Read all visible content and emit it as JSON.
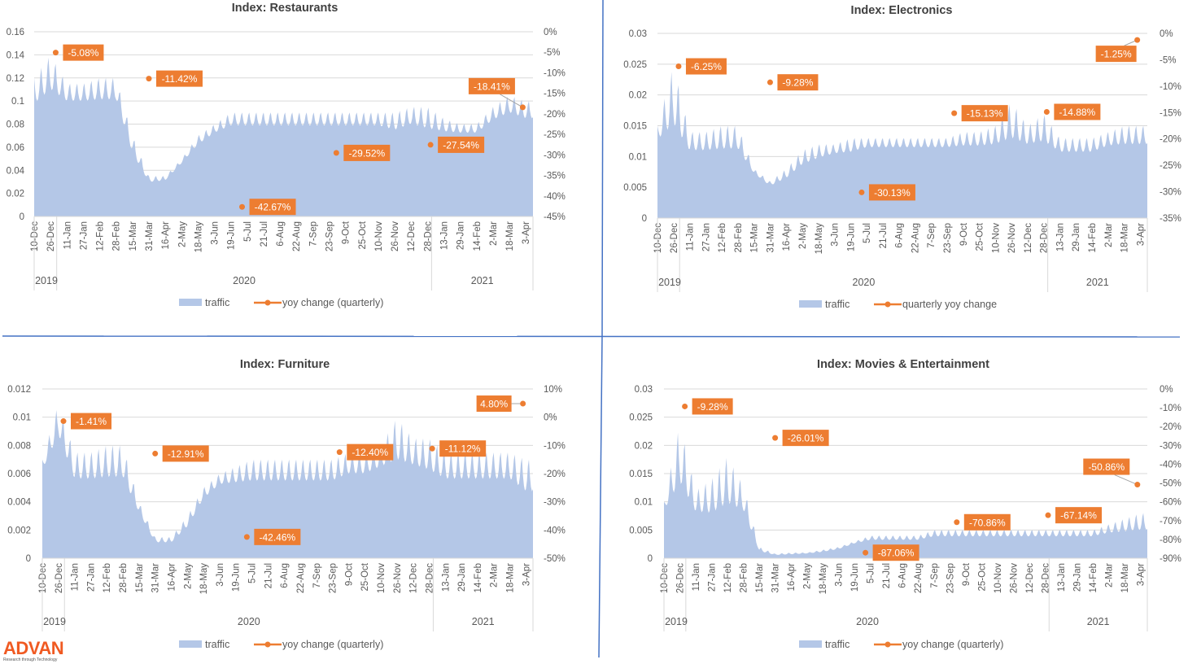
{
  "logo": {
    "brand": "ADVAN",
    "tagline": "Research through Technology"
  },
  "colors": {
    "traffic": "#B4C7E7",
    "yoy": "#ED7D31",
    "divider": "#4472C4",
    "grid": "#D9D9D9"
  },
  "chart_data": [
    {
      "type": "area+scatter",
      "title": "Index: Restaurants",
      "x_tick_labels": [
        "10-Dec",
        "26-Dec",
        "11-Jan",
        "27-Jan",
        "12-Feb",
        "28-Feb",
        "15-Mar",
        "31-Mar",
        "16-Apr",
        "2-May",
        "18-May",
        "3-Jun",
        "19-Jun",
        "5-Jul",
        "21-Jul",
        "6-Aug",
        "22-Aug",
        "7-Sep",
        "23-Sep",
        "9-Oct",
        "25-Oct",
        "10-Nov",
        "26-Nov",
        "12-Dec",
        "28-Dec",
        "13-Jan",
        "29-Jan",
        "14-Feb",
        "2-Mar",
        "18-Mar",
        "3-Apr"
      ],
      "x_tick_start": "2019-12-10",
      "x_range": [
        "2019-12-10",
        "2021-04-10"
      ],
      "years": [
        "2019",
        "2020",
        "2021"
      ],
      "left_axis": {
        "ticks": [
          "0",
          "0.02",
          "0.04",
          "0.06",
          "0.08",
          "0.1",
          "0.12",
          "0.14",
          "0.16"
        ],
        "range": [
          0,
          0.16
        ]
      },
      "right_axis": {
        "ticks": [
          "0%",
          "-5%",
          "-10%",
          "-15%",
          "-20%",
          "-25%",
          "-30%",
          "-35%",
          "-40%",
          "-45%"
        ],
        "range": [
          -45,
          0
        ]
      },
      "legend": {
        "traffic": "traffic",
        "yoy": "yoy change (quarterly)",
        "placement": "bottom"
      },
      "grid": true,
      "traffic_weekly_peak": [
        0.12,
        0.14,
        0.115,
        0.115,
        0.12,
        0.12,
        0.07,
        0.035,
        0.035,
        0.05,
        0.07,
        0.08,
        0.09,
        0.09,
        0.09,
        0.09,
        0.09,
        0.09,
        0.09,
        0.09,
        0.09,
        0.09,
        0.09,
        0.095,
        0.095,
        0.085,
        0.08,
        0.08,
        0.095,
        0.105,
        0.1
      ],
      "traffic_weekly_trough": [
        0.09,
        0.1,
        0.095,
        0.095,
        0.095,
        0.095,
        0.05,
        0.028,
        0.03,
        0.045,
        0.06,
        0.07,
        0.075,
        0.075,
        0.075,
        0.075,
        0.075,
        0.075,
        0.075,
        0.075,
        0.075,
        0.075,
        0.07,
        0.075,
        0.07,
        0.07,
        0.07,
        0.07,
        0.08,
        0.085,
        0.08
      ],
      "yoy": [
        {
          "date": "2019-12-31",
          "value": -5.08,
          "label": "-5.08%"
        },
        {
          "date": "2020-03-31",
          "value": -11.42,
          "label": "-11.42%"
        },
        {
          "date": "2020-06-30",
          "value": -42.67,
          "label": "-42.67%"
        },
        {
          "date": "2020-09-30",
          "value": -29.52,
          "label": "-29.52%"
        },
        {
          "date": "2020-12-31",
          "value": -27.54,
          "label": "-27.54%"
        },
        {
          "date": "2021-03-31",
          "value": -18.41,
          "label": "-18.41%"
        }
      ]
    },
    {
      "type": "area+scatter",
      "title": "Index: Electronics",
      "x_tick_labels": [
        "10-Dec",
        "26-Dec",
        "11-Jan",
        "27-Jan",
        "12-Feb",
        "28-Feb",
        "15-Mar",
        "31-Mar",
        "16-Apr",
        "2-May",
        "18-May",
        "3-Jun",
        "19-Jun",
        "5-Jul",
        "21-Jul",
        "6-Aug",
        "22-Aug",
        "7-Sep",
        "23-Sep",
        "9-Oct",
        "25-Oct",
        "10-Nov",
        "26-Nov",
        "12-Dec",
        "28-Dec",
        "13-Jan",
        "29-Jan",
        "14-Feb",
        "2-Mar",
        "18-Mar",
        "3-Apr"
      ],
      "x_tick_start": "2019-12-10",
      "x_range": [
        "2019-12-10",
        "2021-04-10"
      ],
      "years": [
        "2019",
        "2020",
        "2021"
      ],
      "left_axis": {
        "ticks": [
          "0",
          "0.005",
          "0.01",
          "0.015",
          "0.02",
          "0.025",
          "0.03"
        ],
        "range": [
          0,
          0.03
        ]
      },
      "right_axis": {
        "ticks": [
          "0%",
          "-5%",
          "-10%",
          "-15%",
          "-20%",
          "-25%",
          "-30%",
          "-35%"
        ],
        "range": [
          -35,
          0
        ]
      },
      "legend": {
        "traffic": "traffic",
        "yoy": "quarterly yoy change",
        "placement": "bottom"
      },
      "grid": true,
      "traffic_weekly_peak": [
        0.015,
        0.025,
        0.014,
        0.014,
        0.015,
        0.015,
        0.008,
        0.006,
        0.008,
        0.011,
        0.012,
        0.012,
        0.013,
        0.013,
        0.013,
        0.013,
        0.013,
        0.013,
        0.013,
        0.014,
        0.014,
        0.015,
        0.019,
        0.015,
        0.017,
        0.013,
        0.013,
        0.013,
        0.014,
        0.015,
        0.015
      ],
      "traffic_weekly_trough": [
        0.012,
        0.012,
        0.01,
        0.01,
        0.01,
        0.01,
        0.007,
        0.005,
        0.006,
        0.008,
        0.009,
        0.01,
        0.01,
        0.011,
        0.011,
        0.011,
        0.011,
        0.011,
        0.011,
        0.011,
        0.011,
        0.011,
        0.011,
        0.011,
        0.011,
        0.01,
        0.01,
        0.01,
        0.011,
        0.011,
        0.011
      ],
      "yoy": [
        {
          "date": "2019-12-31",
          "value": -6.25,
          "label": "-6.25%"
        },
        {
          "date": "2020-03-31",
          "value": -9.28,
          "label": "-9.28%"
        },
        {
          "date": "2020-06-30",
          "value": -30.13,
          "label": "-30.13%"
        },
        {
          "date": "2020-09-30",
          "value": -15.13,
          "label": "-15.13%"
        },
        {
          "date": "2020-12-31",
          "value": -14.88,
          "label": "-14.88%"
        },
        {
          "date": "2021-03-31",
          "value": -1.25,
          "label": "-1.25%"
        }
      ]
    },
    {
      "type": "area+scatter",
      "title": "Index: Furniture",
      "x_tick_labels": [
        "10-Dec",
        "26-Dec",
        "11-Jan",
        "27-Jan",
        "12-Feb",
        "28-Feb",
        "15-Mar",
        "31-Mar",
        "16-Apr",
        "2-May",
        "18-May",
        "3-Jun",
        "19-Jun",
        "5-Jul",
        "21-Jul",
        "6-Aug",
        "22-Aug",
        "7-Sep",
        "23-Sep",
        "9-Oct",
        "25-Oct",
        "10-Nov",
        "26-Nov",
        "12-Dec",
        "28-Dec",
        "13-Jan",
        "29-Jan",
        "14-Feb",
        "2-Mar",
        "18-Mar",
        "3-Apr"
      ],
      "x_tick_start": "2019-12-10",
      "x_range": [
        "2019-12-10",
        "2021-04-10"
      ],
      "years": [
        "2019",
        "2020",
        "2021"
      ],
      "left_axis": {
        "ticks": [
          "0",
          "0.002",
          "0.004",
          "0.006",
          "0.008",
          "0.01",
          "0.012"
        ],
        "range": [
          0,
          0.012
        ]
      },
      "right_axis": {
        "ticks": [
          "10%",
          "0%",
          "-10%",
          "-20%",
          "-30%",
          "-40%",
          "-50%"
        ],
        "range": [
          -50,
          10
        ]
      },
      "legend": {
        "traffic": "traffic",
        "yoy": "yoy change (quarterly)",
        "placement": "bottom"
      },
      "grid": true,
      "traffic_weekly_peak": [
        0.007,
        0.011,
        0.0075,
        0.0075,
        0.008,
        0.008,
        0.004,
        0.0015,
        0.0015,
        0.003,
        0.005,
        0.006,
        0.0065,
        0.007,
        0.007,
        0.007,
        0.007,
        0.007,
        0.007,
        0.0075,
        0.0075,
        0.008,
        0.01,
        0.0085,
        0.0085,
        0.0075,
        0.0075,
        0.0075,
        0.0075,
        0.0075,
        0.007
      ],
      "traffic_weekly_trough": [
        0.006,
        0.008,
        0.005,
        0.005,
        0.005,
        0.005,
        0.003,
        0.001,
        0.001,
        0.002,
        0.004,
        0.005,
        0.005,
        0.005,
        0.005,
        0.005,
        0.005,
        0.005,
        0.005,
        0.0055,
        0.0055,
        0.006,
        0.006,
        0.006,
        0.0055,
        0.005,
        0.005,
        0.005,
        0.005,
        0.005,
        0.004
      ],
      "yoy": [
        {
          "date": "2019-12-31",
          "value": -1.41,
          "label": "-1.41%"
        },
        {
          "date": "2020-03-31",
          "value": -12.91,
          "label": "-12.91%"
        },
        {
          "date": "2020-06-30",
          "value": -42.46,
          "label": "-42.46%"
        },
        {
          "date": "2020-09-30",
          "value": -12.4,
          "label": "-12.40%"
        },
        {
          "date": "2020-12-31",
          "value": -11.12,
          "label": "-11.12%"
        },
        {
          "date": "2021-03-31",
          "value": 4.8,
          "label": "4.80%"
        }
      ]
    },
    {
      "type": "area+scatter",
      "title": "Index: Movies & Entertainment",
      "x_tick_labels": [
        "10-Dec",
        "26-Dec",
        "11-Jan",
        "27-Jan",
        "12-Feb",
        "28-Feb",
        "15-Mar",
        "31-Mar",
        "16-Apr",
        "2-May",
        "18-May",
        "3-Jun",
        "19-Jun",
        "5-Jul",
        "21-Jul",
        "6-Aug",
        "22-Aug",
        "7-Sep",
        "23-Sep",
        "9-Oct",
        "25-Oct",
        "10-Nov",
        "26-Nov",
        "12-Dec",
        "28-Dec",
        "13-Jan",
        "29-Jan",
        "14-Feb",
        "2-Mar",
        "18-Mar",
        "3-Apr"
      ],
      "x_tick_start": "2019-12-10",
      "x_range": [
        "2019-12-10",
        "2021-04-10"
      ],
      "years": [
        "2019",
        "2020",
        "2021"
      ],
      "left_axis": {
        "ticks": [
          "0",
          "0.005",
          "0.01",
          "0.015",
          "0.02",
          "0.025",
          "0.03"
        ],
        "range": [
          0,
          0.03
        ]
      },
      "right_axis": {
        "ticks": [
          "0%",
          "-10%",
          "-20%",
          "-30%",
          "-40%",
          "-50%",
          "-60%",
          "-70%",
          "-80%",
          "-90%"
        ],
        "range": [
          -90,
          0
        ]
      },
      "legend": {
        "traffic": "traffic",
        "yoy": "yoy change (quarterly)",
        "placement": "bottom"
      },
      "grid": true,
      "traffic_weekly_peak": [
        0.01,
        0.024,
        0.012,
        0.014,
        0.018,
        0.013,
        0.002,
        0.0008,
        0.001,
        0.001,
        0.0015,
        0.002,
        0.003,
        0.004,
        0.004,
        0.004,
        0.004,
        0.005,
        0.005,
        0.005,
        0.005,
        0.005,
        0.005,
        0.005,
        0.005,
        0.005,
        0.005,
        0.005,
        0.006,
        0.007,
        0.008
      ],
      "traffic_weekly_trough": [
        0.008,
        0.01,
        0.007,
        0.006,
        0.007,
        0.007,
        0.001,
        0.0005,
        0.0006,
        0.0008,
        0.001,
        0.0015,
        0.0025,
        0.003,
        0.003,
        0.003,
        0.003,
        0.0035,
        0.0035,
        0.0035,
        0.0035,
        0.0035,
        0.0035,
        0.0035,
        0.0035,
        0.0035,
        0.0035,
        0.0035,
        0.004,
        0.004,
        0.004
      ],
      "yoy": [
        {
          "date": "2019-12-31",
          "value": -9.28,
          "label": "-9.28%"
        },
        {
          "date": "2020-03-31",
          "value": -26.01,
          "label": "-26.01%"
        },
        {
          "date": "2020-06-30",
          "value": -87.06,
          "label": "-87.06%"
        },
        {
          "date": "2020-09-30",
          "value": -70.86,
          "label": "-70.86%"
        },
        {
          "date": "2020-12-31",
          "value": -67.14,
          "label": "-67.14%"
        },
        {
          "date": "2021-03-31",
          "value": -50.86,
          "label": "-50.86%"
        }
      ]
    }
  ]
}
